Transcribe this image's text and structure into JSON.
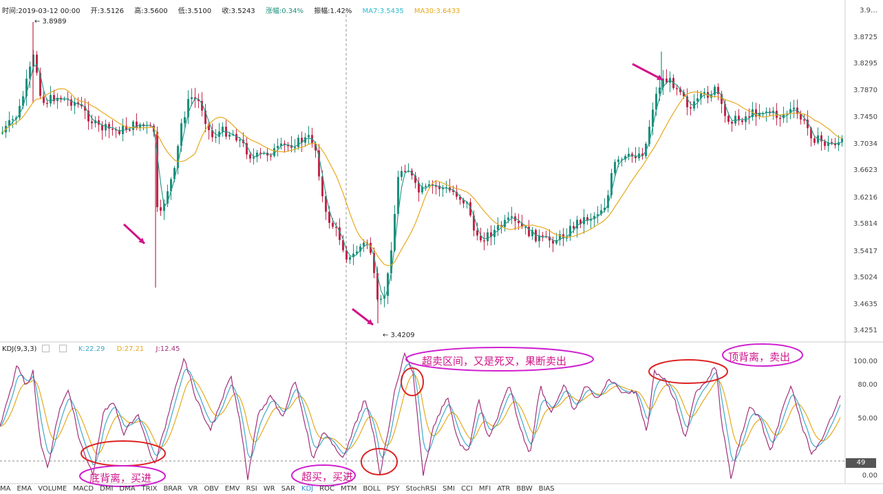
{
  "header": {
    "time": "时间:2019-03-12 00:00",
    "open": "开:3.5126",
    "high": "高:3.5600",
    "low": "低:3.5100",
    "close": "收:3.5243",
    "change": "涨幅:0.34%",
    "amplitude": "振幅:1.42%",
    "ma7": "MA7:3.5435",
    "ma30": "MA30:3.6433"
  },
  "colors": {
    "up": "#1a8f7b",
    "down": "#c0284a",
    "ma7": "#2a9c8c",
    "ma30": "#e6a81c",
    "k": "#3fa8c8",
    "d": "#e6a81c",
    "j": "#a0307a",
    "annotation": "#d0148a",
    "circle": "#d22",
    "ellipse": "#d020d0"
  },
  "price_axis": {
    "labels": [
      "3.9…",
      "3.8725",
      "3.8295",
      "3.7870",
      "3.7450",
      "3.7034",
      "3.6623",
      "3.6216",
      "3.5814",
      "3.5417",
      "3.5024",
      "3.4635",
      "3.4251"
    ]
  },
  "kdj_axis": {
    "labels": [
      "100.00",
      "80.00",
      "50.00",
      "0.00"
    ]
  },
  "extremes": {
    "high": "← 3.8989",
    "low": "← 3.4209"
  },
  "kdj_header": {
    "name": "KDJ(9,3,3)",
    "k": "K:22.29",
    "d": "D:27.21",
    "j": "J:12.45"
  },
  "current_value": "49",
  "annotations": {
    "bottom_divergence": "底背离，买进",
    "oversold": "超买，买进",
    "overbought_cross": "超卖区间，又是死叉，果断卖出",
    "top_divergence": "顶背离，卖出"
  },
  "indicator_tabs": [
    "MA",
    "EMA",
    "VOLUME",
    "MACD",
    "DMI",
    "DMA",
    "TRIX",
    "BRAR",
    "VR",
    "OBV",
    "EMV",
    "RSI",
    "WR",
    "SAR",
    "KDJ",
    "ROC",
    "MTM",
    "BOLL",
    "PSY",
    "StochRSI",
    "SMI",
    "CCI",
    "MFI",
    "ATR",
    "BBW",
    "BIAS"
  ],
  "active_tab": "KDJ"
}
